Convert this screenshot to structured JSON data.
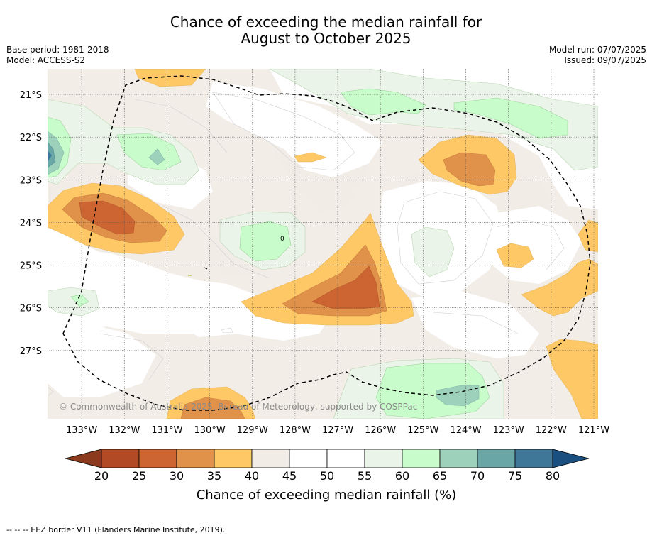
{
  "title_line1": "Chance of exceeding the median rainfall for",
  "title_line2": "August to October 2025",
  "base_period": "Base period: 1981-2018",
  "model": "Model: ACCESS-S2",
  "model_run": "Model run: 07/07/2025",
  "issued": "Issued: 09/07/2025",
  "credit": "© Commonwealth of Australia 2025, Bureau of Meteorology, supported by COSPPac",
  "lat_labels": [
    "21°S",
    "22°S",
    "23°S",
    "24°S",
    "25°S",
    "26°S",
    "27°S"
  ],
  "lon_labels": [
    "133°W",
    "132°W",
    "131°W",
    "130°W",
    "129°W",
    "128°W",
    "127°W",
    "126°W",
    "125°W",
    "124°W",
    "123°W",
    "122°W",
    "121°W"
  ],
  "colorbar": {
    "ticks": [
      "20",
      "25",
      "30",
      "35",
      "40",
      "45",
      "50",
      "55",
      "60",
      "65",
      "70",
      "75",
      "80"
    ],
    "colors": [
      "#8b3a1e",
      "#b24a25",
      "#cc6532",
      "#e0924a",
      "#fec866",
      "#f1ece6",
      "#ffffff",
      "#ffffff",
      "#eaf4e8",
      "#c8fcca",
      "#9ed1bc",
      "#6aa6a6",
      "#3f7799",
      "#1a4f7f"
    ],
    "label": "Chance of exceeding median rainfall (%)"
  },
  "footnote": "--  --  -- EEZ border V11 (Flanders Marine Institute, 2019).",
  "map_data": {
    "lat_range_deg_s": [
      20.4,
      28.6
    ],
    "lon_range_deg_w": [
      133.8,
      120.9
    ],
    "regions": [
      {
        "id": "warm-west-24S",
        "category": "35-40",
        "color": "#fec866"
      },
      {
        "id": "warm-central-26S",
        "category": "25-30",
        "color": "#cc6532"
      },
      {
        "id": "warm-east-23S",
        "category": "30-35",
        "color": "#e0924a"
      },
      {
        "id": "wet-west-22S",
        "category": "70-75",
        "color": "#6aa6a6"
      },
      {
        "id": "wet-central-24S",
        "category": "60-65",
        "color": "#c8fcca"
      },
      {
        "id": "wet-south-28S",
        "category": "65-70",
        "color": "#9ed1bc"
      },
      {
        "id": "wet-north-21S",
        "category": "60-65",
        "color": "#c8fcca"
      }
    ]
  }
}
